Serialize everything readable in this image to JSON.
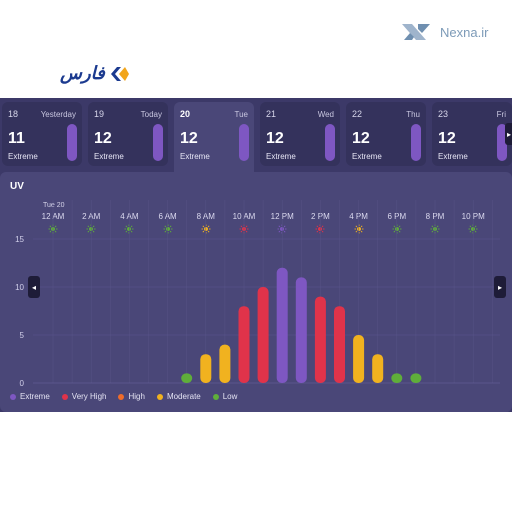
{
  "watermark": {
    "text": "Nexna.ir",
    "icon": "nexna-logo-icon"
  },
  "brand": {
    "text": "فارس",
    "icon": "fars-logo-icon"
  },
  "days": [
    {
      "num": "18",
      "name": "Yesterday",
      "uv": "11",
      "category": "Extreme",
      "active": false
    },
    {
      "num": "19",
      "name": "Today",
      "uv": "12",
      "category": "Extreme",
      "active": false
    },
    {
      "num": "20",
      "name": "Tue",
      "uv": "12",
      "category": "Extreme",
      "active": true
    },
    {
      "num": "21",
      "name": "Wed",
      "uv": "12",
      "category": "Extreme",
      "active": false
    },
    {
      "num": "22",
      "name": "Thu",
      "uv": "12",
      "category": "Extreme",
      "active": false
    },
    {
      "num": "23",
      "name": "Fri",
      "uv": "12",
      "category": "Extreme",
      "active": false
    }
  ],
  "chart_panel": {
    "title": "UV",
    "day_label": "Tue 20",
    "prev_icon": "chevron-left-icon",
    "next_icon": "chevron-right-icon"
  },
  "colors": {
    "Extreme": "#7e57c2",
    "Very High": "#e0334a",
    "High": "#ef6c2a",
    "Moderate": "#f1b21f",
    "Low": "#5fae3a"
  },
  "hour_labels": [
    "12 AM",
    "2 AM",
    "4 AM",
    "6 AM",
    "8 AM",
    "10 AM",
    "12 PM",
    "2 PM",
    "4 PM",
    "6 PM",
    "8 PM",
    "10 PM"
  ],
  "hour_icon_colors": [
    "Low",
    "Low",
    "Low",
    "Low",
    "Moderate",
    "Very High",
    "Extreme",
    "Very High",
    "Moderate",
    "Low",
    "Low",
    "Low"
  ],
  "chart_data": {
    "type": "bar",
    "title": "UV",
    "x_unit": "hour",
    "x": [
      "12 AM",
      "1 AM",
      "2 AM",
      "3 AM",
      "4 AM",
      "5 AM",
      "6 AM",
      "7 AM",
      "8 AM",
      "9 AM",
      "10 AM",
      "11 AM",
      "12 PM",
      "1 PM",
      "2 PM",
      "3 PM",
      "4 PM",
      "5 PM",
      "6 PM",
      "7 PM",
      "8 PM",
      "9 PM",
      "10 PM",
      "11 PM"
    ],
    "values": [
      0,
      0,
      0,
      0,
      0,
      0,
      0,
      1,
      3,
      4,
      8,
      10,
      12,
      11,
      9,
      8,
      5,
      3,
      1,
      1,
      0,
      0,
      0,
      0
    ],
    "categories_per_bar": [
      "Low",
      "Low",
      "Low",
      "Low",
      "Low",
      "Low",
      "Low",
      "Low",
      "Moderate",
      "Moderate",
      "Very High",
      "Very High",
      "Extreme",
      "Extreme",
      "Very High",
      "Very High",
      "Moderate",
      "Moderate",
      "Low",
      "Low",
      "Low",
      "Low",
      "Low",
      "Low"
    ],
    "yticks": [
      0,
      5,
      10,
      15
    ],
    "ylim": [
      0,
      15
    ],
    "grid": true,
    "legend": [
      "Extreme",
      "Very High",
      "High",
      "Moderate",
      "Low"
    ],
    "legend_position": "bottom-left"
  }
}
